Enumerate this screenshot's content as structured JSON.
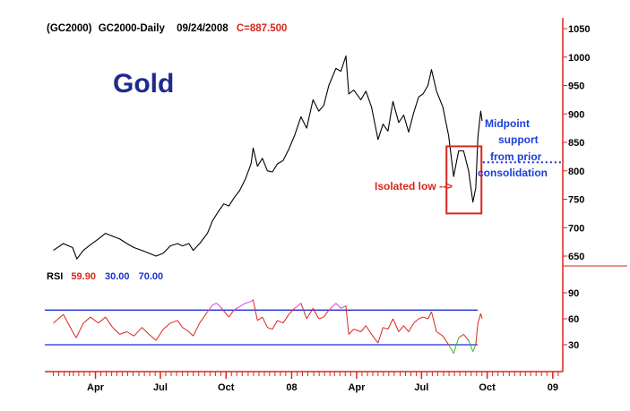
{
  "header": {
    "symbol": "(GC2000)",
    "name": "GC2000-Daily",
    "date": "09/24/2008",
    "close_label": "C=887.500"
  },
  "title": "Gold",
  "annotations": {
    "midpoint_lines": [
      "Midpoint",
      "support",
      "from prior",
      "consolidation"
    ],
    "isolated_low": "Isolated low -->"
  },
  "rsi_header": {
    "label": "RSI",
    "value": "59.90",
    "lower": "30.00",
    "upper": "70.00"
  },
  "colors": {
    "price_line": "#000000",
    "rsi_line": "#d8261c",
    "rsi_overbought": "#e040e0",
    "rsi_oversold": "#33bb22",
    "threshold_line": "#1a2fd6",
    "box": "#d8261c",
    "axis": "#d8261c",
    "title": "#1f2a8c"
  },
  "chart_data": [
    {
      "type": "line",
      "title": "Gold",
      "series": [
        {
          "points": [
            [
              "2007-02-01",
              660
            ],
            [
              "2007-02-15",
              672
            ],
            [
              "2007-02-28",
              665
            ],
            [
              "2007-03-06",
              645
            ],
            [
              "2007-03-15",
              660
            ],
            [
              "2007-03-25",
              670
            ],
            [
              "2007-04-05",
              680
            ],
            [
              "2007-04-15",
              690
            ],
            [
              "2007-04-25",
              685
            ],
            [
              "2007-05-05",
              680
            ],
            [
              "2007-05-15",
              672
            ],
            [
              "2007-05-25",
              665
            ],
            [
              "2007-06-05",
              660
            ],
            [
              "2007-06-15",
              655
            ],
            [
              "2007-06-25",
              650
            ],
            [
              "2007-07-05",
              655
            ],
            [
              "2007-07-15",
              668
            ],
            [
              "2007-07-25",
              672
            ],
            [
              "2007-08-01",
              668
            ],
            [
              "2007-08-10",
              672
            ],
            [
              "2007-08-16",
              660
            ],
            [
              "2007-08-25",
              672
            ],
            [
              "2007-09-05",
              690
            ],
            [
              "2007-09-12",
              712
            ],
            [
              "2007-09-20",
              728
            ],
            [
              "2007-09-28",
              742
            ],
            [
              "2007-10-05",
              738
            ],
            [
              "2007-10-12",
              752
            ],
            [
              "2007-10-20",
              765
            ],
            [
              "2007-10-28",
              785
            ],
            [
              "2007-11-05",
              812
            ],
            [
              "2007-11-08",
              840
            ],
            [
              "2007-11-14",
              808
            ],
            [
              "2007-11-21",
              822
            ],
            [
              "2007-11-28",
              800
            ],
            [
              "2007-12-05",
              798
            ],
            [
              "2007-12-12",
              812
            ],
            [
              "2007-12-20",
              818
            ],
            [
              "2007-12-28",
              838
            ],
            [
              "2008-01-05",
              862
            ],
            [
              "2008-01-14",
              895
            ],
            [
              "2008-01-22",
              875
            ],
            [
              "2008-01-31",
              925
            ],
            [
              "2008-02-08",
              905
            ],
            [
              "2008-02-15",
              915
            ],
            [
              "2008-02-22",
              950
            ],
            [
              "2008-03-03",
              980
            ],
            [
              "2008-03-10",
              975
            ],
            [
              "2008-03-17",
              1002
            ],
            [
              "2008-03-21",
              935
            ],
            [
              "2008-03-28",
              942
            ],
            [
              "2008-04-07",
              925
            ],
            [
              "2008-04-14",
              940
            ],
            [
              "2008-04-22",
              912
            ],
            [
              "2008-05-01",
              855
            ],
            [
              "2008-05-08",
              882
            ],
            [
              "2008-05-15",
              870
            ],
            [
              "2008-05-22",
              922
            ],
            [
              "2008-05-30",
              885
            ],
            [
              "2008-06-06",
              898
            ],
            [
              "2008-06-13",
              868
            ],
            [
              "2008-06-20",
              902
            ],
            [
              "2008-06-27",
              930
            ],
            [
              "2008-07-03",
              935
            ],
            [
              "2008-07-10",
              950
            ],
            [
              "2008-07-15",
              978
            ],
            [
              "2008-07-22",
              940
            ],
            [
              "2008-07-31",
              912
            ],
            [
              "2008-08-08",
              862
            ],
            [
              "2008-08-15",
              790
            ],
            [
              "2008-08-22",
              835
            ],
            [
              "2008-08-29",
              835
            ],
            [
              "2008-09-05",
              800
            ],
            [
              "2008-09-11",
              745
            ],
            [
              "2008-09-15",
              770
            ],
            [
              "2008-09-18",
              860
            ],
            [
              "2008-09-22",
              905
            ],
            [
              "2008-09-24",
              887.5
            ]
          ]
        }
      ],
      "xlabels": [
        "Apr",
        "Jul",
        "Oct",
        "08",
        "Apr",
        "Jul",
        "Oct",
        "09"
      ],
      "yticks": [
        650,
        700,
        750,
        800,
        850,
        900,
        950,
        1000,
        1050
      ],
      "ylim": [
        628,
        1060
      ],
      "xlim": [
        "2007-01-20",
        "2009-01-15"
      ],
      "reference_lines": [
        {
          "value": 815,
          "x_from": "2008-09-25",
          "style": "dotted"
        }
      ],
      "highlight_box": {
        "x_from": "2008-08-05",
        "x_to": "2008-09-23",
        "y_from": 725,
        "y_to": 843
      }
    },
    {
      "type": "line",
      "title": "RSI",
      "series": [
        {
          "points": [
            [
              "2007-02-01",
              55
            ],
            [
              "2007-02-15",
              65
            ],
            [
              "2007-02-28",
              45
            ],
            [
              "2007-03-05",
              38
            ],
            [
              "2007-03-15",
              55
            ],
            [
              "2007-03-25",
              62
            ],
            [
              "2007-04-05",
              55
            ],
            [
              "2007-04-15",
              62
            ],
            [
              "2007-04-25",
              50
            ],
            [
              "2007-05-05",
              42
            ],
            [
              "2007-05-15",
              45
            ],
            [
              "2007-05-25",
              40
            ],
            [
              "2007-06-05",
              50
            ],
            [
              "2007-06-15",
              42
            ],
            [
              "2007-06-25",
              35
            ],
            [
              "2007-07-05",
              48
            ],
            [
              "2007-07-15",
              55
            ],
            [
              "2007-07-25",
              58
            ],
            [
              "2007-08-01",
              50
            ],
            [
              "2007-08-10",
              45
            ],
            [
              "2007-08-16",
              40
            ],
            [
              "2007-08-25",
              55
            ],
            [
              "2007-09-05",
              68
            ],
            [
              "2007-09-12",
              76
            ],
            [
              "2007-09-18",
              78
            ],
            [
              "2007-09-25",
              72
            ],
            [
              "2007-10-05",
              62
            ],
            [
              "2007-10-12",
              70
            ],
            [
              "2007-10-20",
              74
            ],
            [
              "2007-10-28",
              78
            ],
            [
              "2007-11-05",
              80
            ],
            [
              "2007-11-08",
              82
            ],
            [
              "2007-11-14",
              58
            ],
            [
              "2007-11-21",
              62
            ],
            [
              "2007-11-28",
              50
            ],
            [
              "2007-12-05",
              48
            ],
            [
              "2007-12-12",
              58
            ],
            [
              "2007-12-20",
              55
            ],
            [
              "2007-12-28",
              65
            ],
            [
              "2008-01-05",
              72
            ],
            [
              "2008-01-14",
              78
            ],
            [
              "2008-01-22",
              60
            ],
            [
              "2008-01-31",
              72
            ],
            [
              "2008-02-08",
              60
            ],
            [
              "2008-02-15",
              62
            ],
            [
              "2008-02-22",
              70
            ],
            [
              "2008-03-03",
              78
            ],
            [
              "2008-03-10",
              72
            ],
            [
              "2008-03-17",
              75
            ],
            [
              "2008-03-21",
              42
            ],
            [
              "2008-03-28",
              48
            ],
            [
              "2008-04-07",
              45
            ],
            [
              "2008-04-14",
              52
            ],
            [
              "2008-04-22",
              42
            ],
            [
              "2008-05-01",
              32
            ],
            [
              "2008-05-08",
              50
            ],
            [
              "2008-05-15",
              48
            ],
            [
              "2008-05-22",
              60
            ],
            [
              "2008-05-30",
              45
            ],
            [
              "2008-06-06",
              52
            ],
            [
              "2008-06-13",
              45
            ],
            [
              "2008-06-20",
              55
            ],
            [
              "2008-06-27",
              60
            ],
            [
              "2008-07-03",
              62
            ],
            [
              "2008-07-10",
              60
            ],
            [
              "2008-07-15",
              68
            ],
            [
              "2008-07-22",
              45
            ],
            [
              "2008-07-31",
              40
            ],
            [
              "2008-08-08",
              30
            ],
            [
              "2008-08-15",
              20
            ],
            [
              "2008-08-22",
              38
            ],
            [
              "2008-08-29",
              42
            ],
            [
              "2008-09-05",
              35
            ],
            [
              "2008-09-11",
              22
            ],
            [
              "2008-09-15",
              30
            ],
            [
              "2008-09-18",
              55
            ],
            [
              "2008-09-22",
              66
            ],
            [
              "2008-09-24",
              59.9
            ]
          ]
        }
      ],
      "xlabels": [
        "Apr",
        "Jul",
        "Oct",
        "08",
        "Apr",
        "Jul",
        "Oct",
        "09"
      ],
      "yticks": [
        30,
        60,
        90
      ],
      "ylim": [
        0,
        100
      ],
      "reference_lines": [
        {
          "value": 30
        },
        {
          "value": 70
        }
      ]
    }
  ]
}
